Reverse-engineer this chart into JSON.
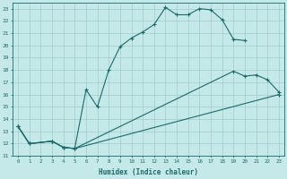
{
  "xlabel": "Humidex (Indice chaleur)",
  "bg_color": "#c5e8e8",
  "grid_color": "#a0cccc",
  "line_color": "#1a6b6b",
  "line1_x": [
    0,
    1,
    3,
    4,
    5,
    6,
    7,
    8,
    9,
    10,
    11,
    12,
    13,
    14,
    15,
    16,
    17,
    18,
    19,
    20
  ],
  "line1_y": [
    13.4,
    12.0,
    12.2,
    11.7,
    11.6,
    16.4,
    15.0,
    18.0,
    19.9,
    20.6,
    21.1,
    21.7,
    23.1,
    22.5,
    22.5,
    23.0,
    22.9,
    22.1,
    20.5,
    20.4
  ],
  "line2_x": [
    0,
    1,
    3,
    4,
    5,
    19,
    20,
    21,
    22,
    23
  ],
  "line2_y": [
    13.4,
    12.0,
    12.2,
    11.7,
    11.6,
    17.9,
    17.5,
    17.6,
    17.2,
    16.2
  ],
  "line3_x": [
    0,
    1,
    3,
    4,
    5,
    23
  ],
  "line3_y": [
    13.4,
    12.0,
    12.2,
    11.7,
    11.6,
    16.0
  ],
  "xlim": [
    -0.5,
    23.5
  ],
  "ylim": [
    11.0,
    23.5
  ],
  "xticks": [
    0,
    1,
    2,
    3,
    4,
    5,
    6,
    7,
    8,
    9,
    10,
    11,
    12,
    13,
    14,
    15,
    16,
    17,
    18,
    19,
    20,
    21,
    22,
    23
  ],
  "yticks": [
    11,
    12,
    13,
    14,
    15,
    16,
    17,
    18,
    19,
    20,
    21,
    22,
    23
  ]
}
